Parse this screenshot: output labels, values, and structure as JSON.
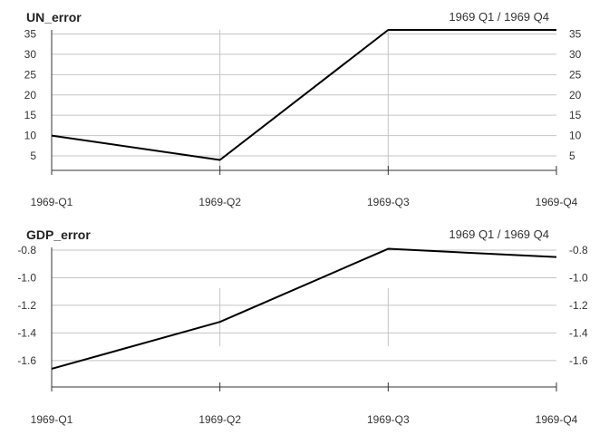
{
  "chart_data": [
    {
      "type": "line",
      "title": "UN_error",
      "range_label": "1969 Q1 / 1969 Q4",
      "categories": [
        "1969-Q1",
        "1969-Q2",
        "1969-Q3",
        "1969-Q4"
      ],
      "values": [
        10,
        4,
        36,
        36
      ],
      "y_ticks": [
        5,
        10,
        15,
        20,
        25,
        30,
        35
      ],
      "ylim": [
        3,
        36
      ],
      "grid": true
    },
    {
      "type": "line",
      "title": "GDP_error",
      "range_label": "1969 Q1 / 1969 Q4",
      "categories": [
        "1969-Q1",
        "1969-Q2",
        "1969-Q3",
        "1969-Q4"
      ],
      "values": [
        -1.66,
        -1.32,
        -0.79,
        -0.85
      ],
      "y_ticks": [
        -1.6,
        -1.4,
        -1.2,
        -1.0,
        -0.8
      ],
      "ylim": [
        -1.68,
        -0.78
      ],
      "grid": true
    }
  ]
}
